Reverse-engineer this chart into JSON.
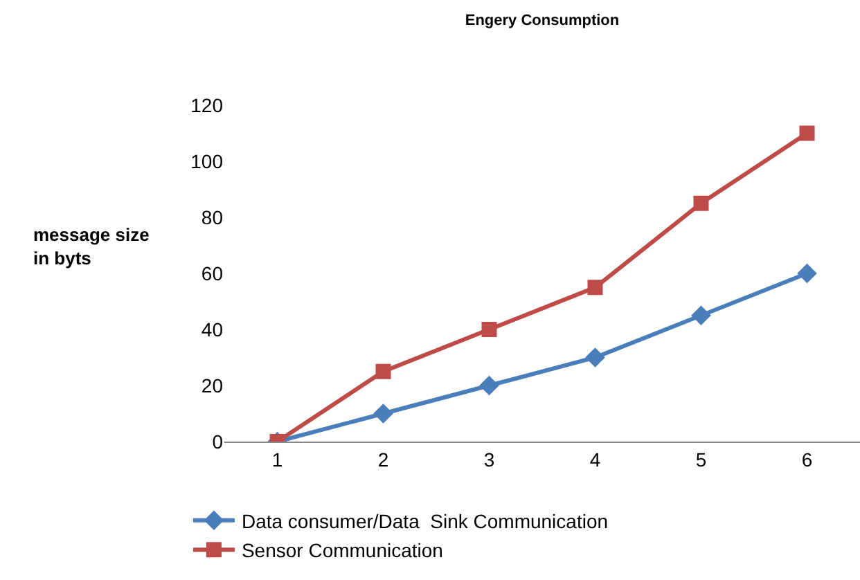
{
  "chart_data": {
    "type": "line",
    "title": "Engery Consumption",
    "ylabel": "message size\nin byts",
    "categories": [
      "1",
      "2",
      "3",
      "4",
      "5",
      "6"
    ],
    "series": [
      {
        "name": "Data consumer/Data  Sink Communication",
        "color": "#4a7ebb",
        "marker": "diamond",
        "values": [
          0,
          10,
          20,
          30,
          45,
          60
        ]
      },
      {
        "name": "Sensor Communication",
        "color": "#be4b48",
        "marker": "square",
        "values": [
          0,
          25,
          40,
          55,
          85,
          110
        ]
      }
    ],
    "ylim": [
      0,
      120
    ],
    "yticks": [
      0,
      20,
      40,
      60,
      80,
      100,
      120
    ],
    "grid": false,
    "legend": "bottom"
  }
}
